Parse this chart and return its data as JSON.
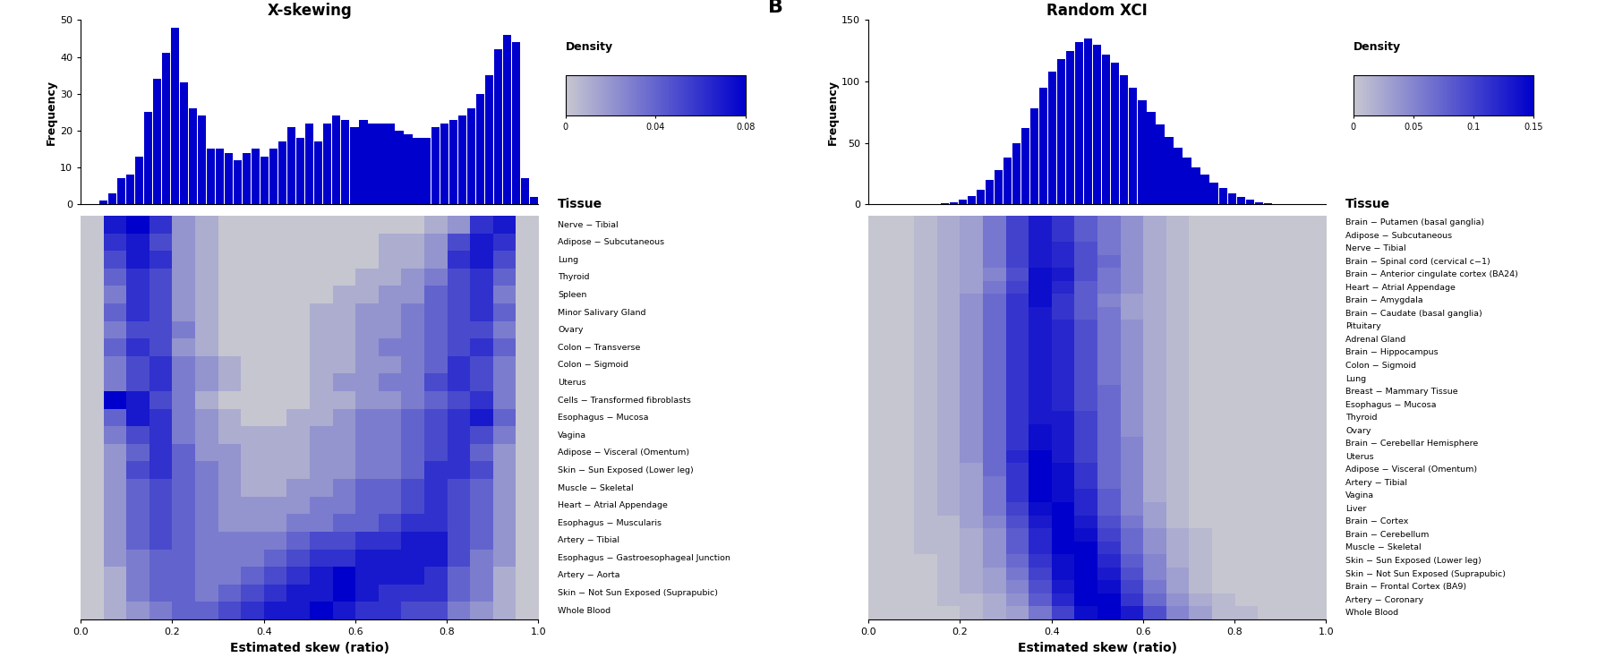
{
  "panel_a": {
    "title": "X-skewing",
    "xlabel": "Estimated skew (ratio)",
    "ylabel": "Frequency",
    "hist_values": [
      0,
      0,
      1,
      3,
      7,
      8,
      13,
      25,
      34,
      41,
      48,
      33,
      26,
      24,
      15,
      15,
      14,
      12,
      14,
      15,
      13,
      15,
      17,
      21,
      18,
      22,
      17,
      22,
      24,
      23,
      21,
      23,
      22,
      22,
      22,
      20,
      19,
      18,
      18,
      21,
      22,
      23,
      24,
      26,
      30,
      35,
      42,
      46,
      44,
      7,
      2
    ],
    "hist_xlim": [
      0.0,
      1.0
    ],
    "hist_ylim": [
      0,
      50
    ],
    "hist_yticks": [
      0,
      10,
      20,
      30,
      40,
      50
    ],
    "density_vmin": 0,
    "density_vmax": 0.08,
    "density_ticks": [
      0,
      0.04,
      0.08
    ],
    "n_bins": 20,
    "heatmap": [
      [
        0.0,
        0.07,
        0.08,
        0.06,
        0.02,
        0.01,
        0.0,
        0.0,
        0.0,
        0.0,
        0.0,
        0.0,
        0.0,
        0.0,
        0.0,
        0.01,
        0.02,
        0.06,
        0.07,
        0.0
      ],
      [
        0.0,
        0.06,
        0.07,
        0.05,
        0.02,
        0.01,
        0.0,
        0.0,
        0.0,
        0.0,
        0.0,
        0.0,
        0.0,
        0.01,
        0.01,
        0.02,
        0.05,
        0.07,
        0.06,
        0.0
      ],
      [
        0.0,
        0.05,
        0.07,
        0.06,
        0.02,
        0.01,
        0.0,
        0.0,
        0.0,
        0.0,
        0.0,
        0.0,
        0.0,
        0.01,
        0.01,
        0.02,
        0.06,
        0.07,
        0.05,
        0.0
      ],
      [
        0.0,
        0.04,
        0.06,
        0.05,
        0.02,
        0.01,
        0.0,
        0.0,
        0.0,
        0.0,
        0.0,
        0.0,
        0.01,
        0.01,
        0.02,
        0.03,
        0.05,
        0.06,
        0.04,
        0.0
      ],
      [
        0.0,
        0.03,
        0.06,
        0.05,
        0.02,
        0.01,
        0.0,
        0.0,
        0.0,
        0.0,
        0.0,
        0.01,
        0.01,
        0.02,
        0.02,
        0.04,
        0.05,
        0.06,
        0.03,
        0.0
      ],
      [
        0.0,
        0.04,
        0.06,
        0.05,
        0.02,
        0.01,
        0.0,
        0.0,
        0.0,
        0.0,
        0.01,
        0.01,
        0.02,
        0.02,
        0.03,
        0.04,
        0.05,
        0.06,
        0.04,
        0.0
      ],
      [
        0.0,
        0.03,
        0.05,
        0.05,
        0.03,
        0.01,
        0.0,
        0.0,
        0.0,
        0.0,
        0.01,
        0.01,
        0.02,
        0.02,
        0.03,
        0.04,
        0.05,
        0.05,
        0.03,
        0.0
      ],
      [
        0.0,
        0.04,
        0.06,
        0.05,
        0.02,
        0.01,
        0.0,
        0.0,
        0.0,
        0.0,
        0.01,
        0.01,
        0.02,
        0.03,
        0.03,
        0.04,
        0.05,
        0.06,
        0.04,
        0.0
      ],
      [
        0.0,
        0.03,
        0.05,
        0.06,
        0.03,
        0.02,
        0.01,
        0.0,
        0.0,
        0.0,
        0.01,
        0.01,
        0.02,
        0.02,
        0.03,
        0.04,
        0.06,
        0.05,
        0.03,
        0.0
      ],
      [
        0.0,
        0.03,
        0.05,
        0.06,
        0.03,
        0.02,
        0.01,
        0.0,
        0.0,
        0.0,
        0.01,
        0.02,
        0.02,
        0.03,
        0.03,
        0.05,
        0.06,
        0.05,
        0.03,
        0.0
      ],
      [
        0.0,
        0.08,
        0.07,
        0.05,
        0.03,
        0.01,
        0.0,
        0.0,
        0.0,
        0.0,
        0.01,
        0.01,
        0.02,
        0.02,
        0.03,
        0.04,
        0.05,
        0.06,
        0.03,
        0.0
      ],
      [
        0.0,
        0.04,
        0.07,
        0.06,
        0.03,
        0.02,
        0.01,
        0.0,
        0.0,
        0.01,
        0.01,
        0.02,
        0.03,
        0.03,
        0.04,
        0.05,
        0.06,
        0.07,
        0.04,
        0.0
      ],
      [
        0.0,
        0.03,
        0.05,
        0.06,
        0.03,
        0.02,
        0.01,
        0.01,
        0.01,
        0.01,
        0.02,
        0.02,
        0.03,
        0.03,
        0.04,
        0.05,
        0.06,
        0.05,
        0.03,
        0.0
      ],
      [
        0.0,
        0.02,
        0.04,
        0.06,
        0.04,
        0.02,
        0.02,
        0.01,
        0.01,
        0.01,
        0.02,
        0.02,
        0.03,
        0.03,
        0.04,
        0.05,
        0.06,
        0.04,
        0.02,
        0.0
      ],
      [
        0.0,
        0.02,
        0.05,
        0.06,
        0.04,
        0.03,
        0.02,
        0.01,
        0.01,
        0.01,
        0.02,
        0.02,
        0.03,
        0.03,
        0.04,
        0.06,
        0.06,
        0.05,
        0.02,
        0.0
      ],
      [
        0.0,
        0.02,
        0.04,
        0.05,
        0.04,
        0.03,
        0.02,
        0.01,
        0.01,
        0.02,
        0.02,
        0.03,
        0.04,
        0.04,
        0.05,
        0.06,
        0.05,
        0.04,
        0.02,
        0.0
      ],
      [
        0.0,
        0.02,
        0.04,
        0.05,
        0.04,
        0.03,
        0.02,
        0.02,
        0.02,
        0.02,
        0.03,
        0.03,
        0.04,
        0.04,
        0.05,
        0.06,
        0.05,
        0.04,
        0.02,
        0.0
      ],
      [
        0.0,
        0.02,
        0.04,
        0.05,
        0.04,
        0.03,
        0.02,
        0.02,
        0.02,
        0.03,
        0.03,
        0.04,
        0.04,
        0.05,
        0.06,
        0.06,
        0.05,
        0.04,
        0.02,
        0.0
      ],
      [
        0.0,
        0.02,
        0.04,
        0.05,
        0.04,
        0.03,
        0.03,
        0.03,
        0.03,
        0.04,
        0.05,
        0.05,
        0.06,
        0.06,
        0.07,
        0.07,
        0.05,
        0.04,
        0.02,
        0.0
      ],
      [
        0.0,
        0.02,
        0.03,
        0.04,
        0.04,
        0.03,
        0.03,
        0.03,
        0.04,
        0.05,
        0.06,
        0.06,
        0.07,
        0.07,
        0.07,
        0.07,
        0.05,
        0.03,
        0.02,
        0.0
      ],
      [
        0.0,
        0.01,
        0.03,
        0.04,
        0.04,
        0.03,
        0.03,
        0.04,
        0.05,
        0.06,
        0.07,
        0.08,
        0.07,
        0.07,
        0.07,
        0.06,
        0.04,
        0.03,
        0.01,
        0.0
      ],
      [
        0.0,
        0.01,
        0.03,
        0.04,
        0.04,
        0.03,
        0.04,
        0.05,
        0.06,
        0.07,
        0.07,
        0.08,
        0.07,
        0.06,
        0.06,
        0.06,
        0.04,
        0.03,
        0.01,
        0.0
      ],
      [
        0.0,
        0.01,
        0.02,
        0.03,
        0.04,
        0.04,
        0.05,
        0.06,
        0.07,
        0.07,
        0.08,
        0.07,
        0.06,
        0.06,
        0.05,
        0.05,
        0.03,
        0.02,
        0.01,
        0.0
      ]
    ],
    "tissues": [
      "Nerve − Tibial",
      "Adipose − Subcutaneous",
      "Lung",
      "Thyroid",
      "Spleen",
      "Minor Salivary Gland",
      "Ovary",
      "Colon − Transverse",
      "Colon − Sigmoid",
      "Uterus",
      "Cells − Transformed fibroblasts",
      "Esophagus − Mucosa",
      "Vagina",
      "Adipose − Visceral (Omentum)",
      "Skin − Sun Exposed (Lower leg)",
      "Muscle − Skeletal",
      "Heart − Atrial Appendage",
      "Esophagus − Muscularis",
      "Artery − Tibial",
      "Esophagus − Gastroesophageal Junction",
      "Artery − Aorta",
      "Skin − Not Sun Exposed (Suprapubic)",
      "Whole Blood"
    ]
  },
  "panel_b": {
    "title": "Random XCI",
    "xlabel": "Estimated skew (ratio)",
    "ylabel": "Frequency",
    "hist_values": [
      0,
      0,
      0,
      0,
      0,
      0,
      0,
      0,
      1,
      2,
      4,
      7,
      12,
      20,
      28,
      38,
      50,
      62,
      78,
      95,
      108,
      118,
      125,
      132,
      135,
      130,
      122,
      115,
      105,
      95,
      85,
      75,
      65,
      55,
      46,
      38,
      30,
      24,
      18,
      13,
      9,
      6,
      4,
      2,
      1,
      0,
      0,
      0,
      0,
      0,
      0
    ],
    "hist_xlim": [
      0.0,
      1.0
    ],
    "hist_ylim": [
      0,
      150
    ],
    "hist_yticks": [
      0,
      50,
      100,
      150
    ],
    "density_vmin": 0,
    "density_vmax": 0.15,
    "density_ticks": [
      0,
      0.05,
      0.1,
      0.15
    ],
    "n_bins": 20,
    "heatmap": [
      [
        0.0,
        0.0,
        0.01,
        0.02,
        0.03,
        0.06,
        0.1,
        0.13,
        0.11,
        0.08,
        0.06,
        0.04,
        0.02,
        0.01,
        0.0,
        0.0,
        0.0,
        0.0,
        0.0,
        0.0
      ],
      [
        0.0,
        0.0,
        0.01,
        0.02,
        0.03,
        0.06,
        0.1,
        0.13,
        0.11,
        0.08,
        0.06,
        0.04,
        0.02,
        0.01,
        0.0,
        0.0,
        0.0,
        0.0,
        0.0,
        0.0
      ],
      [
        0.0,
        0.0,
        0.01,
        0.02,
        0.03,
        0.06,
        0.1,
        0.13,
        0.12,
        0.09,
        0.06,
        0.04,
        0.02,
        0.01,
        0.0,
        0.0,
        0.0,
        0.0,
        0.0,
        0.0
      ],
      [
        0.0,
        0.0,
        0.01,
        0.02,
        0.03,
        0.06,
        0.1,
        0.13,
        0.12,
        0.09,
        0.07,
        0.04,
        0.02,
        0.01,
        0.0,
        0.0,
        0.0,
        0.0,
        0.0,
        0.0
      ],
      [
        0.0,
        0.0,
        0.01,
        0.02,
        0.03,
        0.05,
        0.09,
        0.14,
        0.13,
        0.09,
        0.06,
        0.04,
        0.02,
        0.01,
        0.0,
        0.0,
        0.0,
        0.0,
        0.0,
        0.0
      ],
      [
        0.0,
        0.0,
        0.01,
        0.02,
        0.03,
        0.06,
        0.1,
        0.14,
        0.12,
        0.08,
        0.06,
        0.04,
        0.02,
        0.01,
        0.0,
        0.0,
        0.0,
        0.0,
        0.0,
        0.0
      ],
      [
        0.0,
        0.0,
        0.01,
        0.02,
        0.04,
        0.07,
        0.11,
        0.14,
        0.11,
        0.08,
        0.05,
        0.03,
        0.02,
        0.01,
        0.0,
        0.0,
        0.0,
        0.0,
        0.0,
        0.0
      ],
      [
        0.0,
        0.0,
        0.01,
        0.02,
        0.04,
        0.07,
        0.11,
        0.13,
        0.11,
        0.08,
        0.06,
        0.03,
        0.02,
        0.01,
        0.0,
        0.0,
        0.0,
        0.0,
        0.0,
        0.0
      ],
      [
        0.0,
        0.0,
        0.01,
        0.02,
        0.04,
        0.07,
        0.11,
        0.13,
        0.12,
        0.09,
        0.06,
        0.04,
        0.02,
        0.01,
        0.0,
        0.0,
        0.0,
        0.0,
        0.0,
        0.0
      ],
      [
        0.0,
        0.0,
        0.01,
        0.02,
        0.04,
        0.07,
        0.11,
        0.13,
        0.12,
        0.09,
        0.06,
        0.04,
        0.02,
        0.01,
        0.0,
        0.0,
        0.0,
        0.0,
        0.0,
        0.0
      ],
      [
        0.0,
        0.0,
        0.01,
        0.02,
        0.04,
        0.07,
        0.11,
        0.13,
        0.12,
        0.09,
        0.06,
        0.04,
        0.02,
        0.01,
        0.0,
        0.0,
        0.0,
        0.0,
        0.0,
        0.0
      ],
      [
        0.0,
        0.0,
        0.01,
        0.02,
        0.04,
        0.07,
        0.11,
        0.13,
        0.12,
        0.09,
        0.06,
        0.04,
        0.02,
        0.01,
        0.0,
        0.0,
        0.0,
        0.0,
        0.0,
        0.0
      ],
      [
        0.0,
        0.0,
        0.01,
        0.02,
        0.04,
        0.07,
        0.11,
        0.13,
        0.12,
        0.09,
        0.06,
        0.04,
        0.02,
        0.01,
        0.0,
        0.0,
        0.0,
        0.0,
        0.0,
        0.0
      ],
      [
        0.0,
        0.0,
        0.01,
        0.02,
        0.04,
        0.07,
        0.11,
        0.13,
        0.12,
        0.09,
        0.07,
        0.04,
        0.02,
        0.01,
        0.0,
        0.0,
        0.0,
        0.0,
        0.0,
        0.0
      ],
      [
        0.0,
        0.0,
        0.01,
        0.02,
        0.04,
        0.07,
        0.11,
        0.13,
        0.12,
        0.09,
        0.07,
        0.04,
        0.02,
        0.01,
        0.0,
        0.0,
        0.0,
        0.0,
        0.0,
        0.0
      ],
      [
        0.0,
        0.0,
        0.01,
        0.02,
        0.04,
        0.07,
        0.11,
        0.13,
        0.13,
        0.1,
        0.07,
        0.04,
        0.02,
        0.01,
        0.0,
        0.0,
        0.0,
        0.0,
        0.0,
        0.0
      ],
      [
        0.0,
        0.0,
        0.01,
        0.02,
        0.04,
        0.07,
        0.11,
        0.14,
        0.13,
        0.1,
        0.07,
        0.04,
        0.02,
        0.01,
        0.0,
        0.0,
        0.0,
        0.0,
        0.0,
        0.0
      ],
      [
        0.0,
        0.0,
        0.01,
        0.02,
        0.04,
        0.07,
        0.11,
        0.14,
        0.13,
        0.1,
        0.07,
        0.05,
        0.02,
        0.01,
        0.0,
        0.0,
        0.0,
        0.0,
        0.0,
        0.0
      ],
      [
        0.0,
        0.0,
        0.01,
        0.02,
        0.04,
        0.07,
        0.12,
        0.15,
        0.13,
        0.1,
        0.07,
        0.05,
        0.02,
        0.01,
        0.0,
        0.0,
        0.0,
        0.0,
        0.0,
        0.0
      ],
      [
        0.0,
        0.0,
        0.01,
        0.02,
        0.03,
        0.07,
        0.11,
        0.15,
        0.14,
        0.11,
        0.07,
        0.05,
        0.02,
        0.01,
        0.0,
        0.0,
        0.0,
        0.0,
        0.0,
        0.0
      ],
      [
        0.0,
        0.0,
        0.01,
        0.02,
        0.03,
        0.06,
        0.11,
        0.15,
        0.14,
        0.11,
        0.07,
        0.05,
        0.02,
        0.01,
        0.0,
        0.0,
        0.0,
        0.0,
        0.0,
        0.0
      ],
      [
        0.0,
        0.0,
        0.01,
        0.02,
        0.03,
        0.06,
        0.11,
        0.15,
        0.14,
        0.12,
        0.08,
        0.05,
        0.02,
        0.01,
        0.0,
        0.0,
        0.0,
        0.0,
        0.0,
        0.0
      ],
      [
        0.0,
        0.0,
        0.01,
        0.02,
        0.03,
        0.06,
        0.1,
        0.14,
        0.15,
        0.12,
        0.08,
        0.05,
        0.03,
        0.01,
        0.0,
        0.0,
        0.0,
        0.0,
        0.0,
        0.0
      ],
      [
        0.0,
        0.0,
        0.01,
        0.01,
        0.03,
        0.05,
        0.09,
        0.13,
        0.15,
        0.13,
        0.09,
        0.06,
        0.03,
        0.01,
        0.0,
        0.0,
        0.0,
        0.0,
        0.0,
        0.0
      ],
      [
        0.0,
        0.0,
        0.01,
        0.01,
        0.02,
        0.04,
        0.08,
        0.12,
        0.15,
        0.14,
        0.1,
        0.07,
        0.04,
        0.02,
        0.01,
        0.0,
        0.0,
        0.0,
        0.0,
        0.0
      ],
      [
        0.0,
        0.0,
        0.01,
        0.01,
        0.02,
        0.04,
        0.08,
        0.12,
        0.15,
        0.15,
        0.11,
        0.07,
        0.04,
        0.02,
        0.01,
        0.0,
        0.0,
        0.0,
        0.0,
        0.0
      ],
      [
        0.0,
        0.0,
        0.0,
        0.01,
        0.02,
        0.04,
        0.07,
        0.11,
        0.14,
        0.15,
        0.12,
        0.08,
        0.05,
        0.02,
        0.01,
        0.0,
        0.0,
        0.0,
        0.0,
        0.0
      ],
      [
        0.0,
        0.0,
        0.0,
        0.01,
        0.02,
        0.03,
        0.06,
        0.1,
        0.14,
        0.15,
        0.13,
        0.09,
        0.05,
        0.03,
        0.01,
        0.0,
        0.0,
        0.0,
        0.0,
        0.0
      ],
      [
        0.0,
        0.0,
        0.0,
        0.01,
        0.02,
        0.03,
        0.05,
        0.09,
        0.13,
        0.15,
        0.14,
        0.1,
        0.06,
        0.03,
        0.01,
        0.0,
        0.0,
        0.0,
        0.0,
        0.0
      ],
      [
        0.0,
        0.0,
        0.0,
        0.01,
        0.01,
        0.02,
        0.04,
        0.08,
        0.12,
        0.15,
        0.15,
        0.11,
        0.07,
        0.04,
        0.02,
        0.01,
        0.0,
        0.0,
        0.0,
        0.0
      ],
      [
        0.0,
        0.0,
        0.0,
        0.0,
        0.01,
        0.02,
        0.03,
        0.06,
        0.1,
        0.14,
        0.15,
        0.13,
        0.09,
        0.05,
        0.03,
        0.01,
        0.01,
        0.0,
        0.0,
        0.0
      ]
    ],
    "tissues": [
      "Brain − Putamen (basal ganglia)",
      "Adipose − Subcutaneous",
      "Nerve − Tibial",
      "Brain − Spinal cord (cervical c−1)",
      "Brain − Anterior cingulate cortex (BA24)",
      "Heart − Atrial Appendage",
      "Brain − Amygdala",
      "Brain − Caudate (basal ganglia)",
      "Pituitary",
      "Adrenal Gland",
      "Brain − Hippocampus",
      "Colon − Sigmoid",
      "Lung",
      "Breast − Mammary Tissue",
      "Esophagus − Mucosa",
      "Thyroid",
      "Ovary",
      "Brain − Cerebellar Hemisphere",
      "Uterus",
      "Adipose − Visceral (Omentum)",
      "Artery − Tibial",
      "Vagina",
      "Liver",
      "Brain − Cortex",
      "Brain − Cerebellum",
      "Muscle − Skeletal",
      "Skin − Sun Exposed (Lower leg)",
      "Skin − Not Sun Exposed (Suprapubic)",
      "Brain − Frontal Cortex (BA9)",
      "Artery − Coronary",
      "Whole Blood"
    ]
  },
  "bar_color": "#0000CC",
  "heatmap_cmap_low": "#C0C0CC",
  "heatmap_cmap_high": "#0000CC"
}
